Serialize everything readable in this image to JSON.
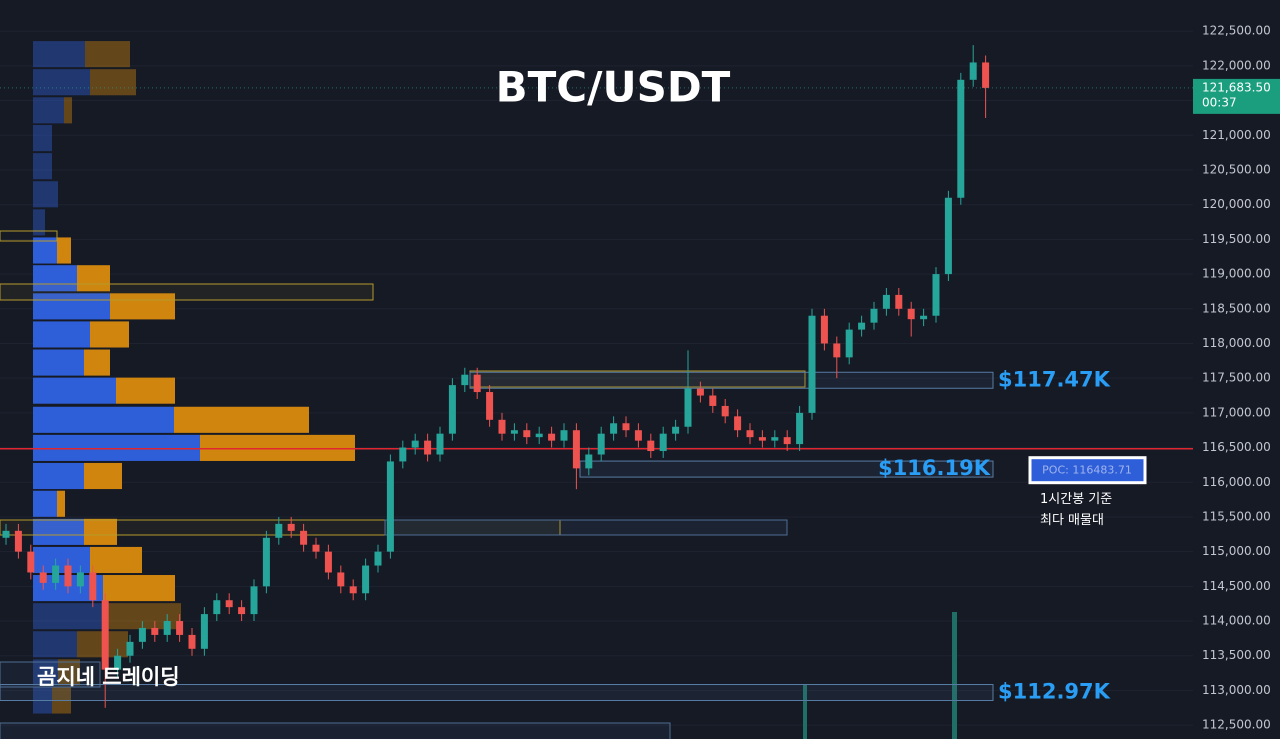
{
  "chart_data": {
    "type": "candlestick",
    "title": "BTC/USDT",
    "subtitle": "곰지네 트레이딩",
    "ylim": [
      112300,
      122950
    ],
    "yticks": [
      {
        "value": 112500,
        "label": "112,500.00"
      },
      {
        "value": 113000,
        "label": "113,000.00"
      },
      {
        "value": 113500,
        "label": "113,500.00"
      },
      {
        "value": 114000,
        "label": "114,000.00"
      },
      {
        "value": 114500,
        "label": "114,500.00"
      },
      {
        "value": 115000,
        "label": "115,000.00"
      },
      {
        "value": 115500,
        "label": "115,500.00"
      },
      {
        "value": 116000,
        "label": "116,000.00"
      },
      {
        "value": 116500,
        "label": "116,500.00"
      },
      {
        "value": 117000,
        "label": "117,000.00"
      },
      {
        "value": 117500,
        "label": "117,500.00"
      },
      {
        "value": 118000,
        "label": "118,000.00"
      },
      {
        "value": 118500,
        "label": "118,500.00"
      },
      {
        "value": 119000,
        "label": "119,000.00"
      },
      {
        "value": 119500,
        "label": "119,500.00"
      },
      {
        "value": 120000,
        "label": "120,000.00"
      },
      {
        "value": 120500,
        "label": "120,500.00"
      },
      {
        "value": 121000,
        "label": "121,000.00"
      },
      {
        "value": 121500,
        "label": "121,500.00"
      },
      {
        "value": 122000,
        "label": "122,000.00"
      },
      {
        "value": 122500,
        "label": "122,500.00"
      }
    ],
    "grid": true,
    "up_color": "#26a69a",
    "down_color": "#ef5350",
    "open": [
      115200,
      115300,
      115000,
      114700,
      114550,
      114800,
      114500,
      114700,
      114300,
      113300,
      113500,
      113700,
      113900,
      113800,
      114000,
      113800,
      113600,
      114100,
      114300,
      114200,
      114100,
      114500,
      115200,
      115400,
      115300,
      115100,
      115000,
      114700,
      114500,
      114400,
      114800,
      115000,
      116300,
      116500,
      116600,
      116400,
      116700,
      117400,
      117550,
      117300,
      116900,
      116700,
      116750,
      116650,
      116700,
      116600,
      116750,
      116200,
      116400,
      116700,
      116850,
      116750,
      116600,
      116450,
      116700,
      116800,
      117350,
      117250,
      117100,
      116950,
      116750,
      116650,
      116600,
      116650,
      116550,
      117000,
      118400,
      118000,
      117800,
      118200,
      118300,
      118500,
      118700,
      118500,
      118350,
      118400,
      119000,
      120100,
      121800,
      122050
    ],
    "high": [
      115400,
      115400,
      115100,
      114800,
      114900,
      114900,
      114800,
      114800,
      114400,
      113600,
      113800,
      114000,
      114000,
      114100,
      114100,
      113900,
      114200,
      114400,
      114400,
      114300,
      114600,
      115300,
      115500,
      115500,
      115400,
      115200,
      115100,
      114800,
      114600,
      114900,
      115100,
      116400,
      116600,
      116700,
      116700,
      116800,
      117500,
      117650,
      117650,
      117400,
      117000,
      116850,
      116850,
      116800,
      116800,
      116850,
      116850,
      116500,
      116800,
      116950,
      116950,
      116850,
      116700,
      116800,
      116900,
      117900,
      117450,
      117350,
      117200,
      117050,
      116850,
      116750,
      116750,
      116750,
      117100,
      118500,
      118500,
      118100,
      118300,
      118400,
      118600,
      118800,
      118800,
      118600,
      118500,
      119100,
      120200,
      121900,
      122300,
      122150
    ],
    "low": [
      115100,
      114900,
      114600,
      114450,
      114450,
      114400,
      114400,
      114200,
      112750,
      113200,
      113400,
      113600,
      113700,
      113700,
      113700,
      113500,
      113500,
      114000,
      114100,
      114000,
      114000,
      114400,
      115100,
      115200,
      115000,
      114900,
      114600,
      114400,
      114300,
      114300,
      114700,
      114900,
      116200,
      116400,
      116300,
      116300,
      116600,
      117300,
      117200,
      116800,
      116600,
      116600,
      116550,
      116550,
      116500,
      116500,
      115900,
      116100,
      116300,
      116600,
      116650,
      116500,
      116350,
      116350,
      116600,
      116700,
      117150,
      117000,
      116850,
      116650,
      116550,
      116500,
      116500,
      116450,
      116450,
      116900,
      117900,
      117500,
      117700,
      118100,
      118200,
      118400,
      118400,
      118100,
      118250,
      118300,
      118900,
      120000,
      121700,
      121250
    ],
    "close": [
      115300,
      115000,
      114700,
      114550,
      114800,
      114500,
      114700,
      114300,
      113300,
      113500,
      113700,
      113900,
      113800,
      114000,
      113800,
      113600,
      114100,
      114300,
      114200,
      114100,
      114500,
      115200,
      115400,
      115300,
      115100,
      115000,
      114700,
      114500,
      114400,
      114800,
      115000,
      116300,
      116500,
      116600,
      116400,
      116700,
      117400,
      117550,
      117300,
      116900,
      116700,
      116750,
      116650,
      116700,
      116600,
      116750,
      116200,
      116400,
      116700,
      116850,
      116750,
      116600,
      116450,
      116700,
      116800,
      117350,
      117250,
      117100,
      116950,
      116750,
      116650,
      116600,
      116650,
      116550,
      117000,
      118400,
      118000,
      117800,
      118200,
      118300,
      118500,
      118700,
      118500,
      118350,
      118400,
      119000,
      120100,
      121800,
      122050,
      121683.5
    ],
    "last_price": {
      "value": 121683.5,
      "label": "121,683.50",
      "countdown": "00:37"
    },
    "levels": [
      {
        "value": 117470,
        "label": "$117.47K"
      },
      {
        "value": 116190,
        "label": "$116.19K"
      },
      {
        "value": 112970,
        "label": "$112.97K"
      }
    ],
    "poc": {
      "value": 116483.71,
      "label": "POC: 116483.71",
      "note": [
        "1시간봉 기준",
        "최다 매물대"
      ]
    },
    "volume_profile": {
      "colors": [
        "#2f5fd8",
        "#d0850f"
      ],
      "value_area": [
        114400,
        119400
      ],
      "prices": [
        122170,
        121765,
        121360,
        120960,
        120555,
        120150,
        119745,
        119340,
        118940,
        118535,
        118130,
        117725,
        117320,
        116900,
        116495,
        116090,
        115690,
        115285,
        114880,
        114475,
        114070,
        113665,
        113260,
        112855
      ],
      "buy": [
        52,
        57,
        31,
        19,
        19,
        25,
        12,
        24,
        44,
        77,
        57,
        51,
        83,
        141,
        167,
        51,
        24,
        51,
        57,
        70,
        74,
        44,
        25,
        19
      ],
      "sell": [
        45,
        46,
        8,
        0,
        0,
        0,
        0,
        14,
        33,
        65,
        39,
        26,
        59,
        135,
        155,
        38,
        8,
        33,
        52,
        72,
        74,
        51,
        22,
        19
      ]
    }
  }
}
